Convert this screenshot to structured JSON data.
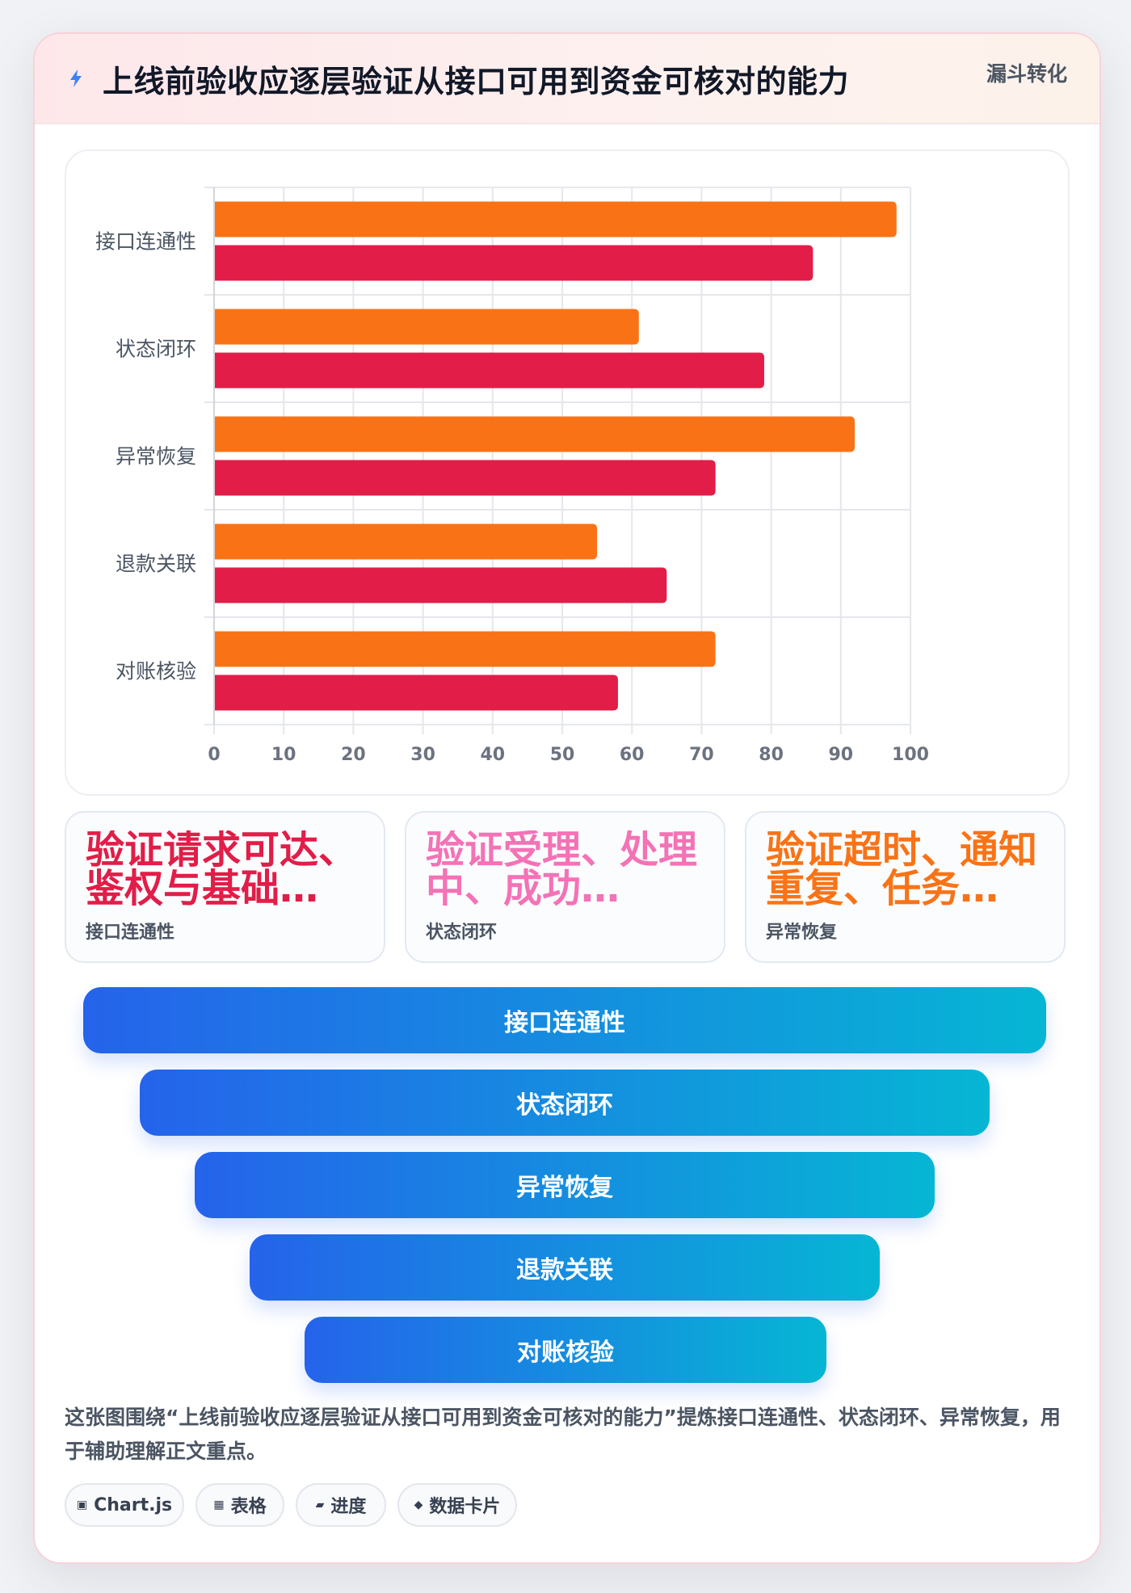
{
  "header": {
    "title": "上线前验收应逐层验证从接口可用到资金可核对的能力",
    "badge": "漏斗转化",
    "icon": "lightning-icon"
  },
  "chart_data": {
    "type": "bar",
    "orientation": "horizontal",
    "categories": [
      "接口连通性",
      "状态闭环",
      "异常恢复",
      "退款关联",
      "对账核验"
    ],
    "series": [
      {
        "values": [
          98,
          61,
          92,
          55,
          72
        ],
        "color": "#f97316"
      },
      {
        "values": [
          86,
          79,
          72,
          65,
          58
        ],
        "color": "#e11d48"
      }
    ],
    "xlim": [
      0,
      100
    ],
    "xticks": [
      "0",
      "10",
      "20",
      "30",
      "40",
      "50",
      "60",
      "70",
      "80",
      "90",
      "100"
    ],
    "grid": true,
    "legend": "none"
  },
  "stat_cards": [
    {
      "value": "验证请求可达、鉴权与基础…",
      "label": "接口连通性",
      "color": "#e11d48"
    },
    {
      "value": "验证受理、处理中、成功…",
      "label": "状态闭环",
      "color": "#f472b6"
    },
    {
      "value": "验证超时、通知重复、任务…",
      "label": "异常恢复",
      "color": "#f97316"
    }
  ],
  "funnel": {
    "stages": [
      "接口连通性",
      "状态闭环",
      "异常恢复",
      "退款关联",
      "对账核验"
    ],
    "colors": [
      "#2563eb",
      "#06b6d4"
    ]
  },
  "description": "这张图围绕“上线前验收应逐层验证从接口可用到资金可核对的能力”提炼接口连通性、状态闭环、异常恢复，用于辅助理解正文重点。",
  "tags": [
    {
      "icon": "▣",
      "label": "Chart.js"
    },
    {
      "icon": "▦",
      "label": "表格"
    },
    {
      "icon": "▰",
      "label": "进度"
    },
    {
      "icon": "◆",
      "label": "数据卡片"
    }
  ]
}
